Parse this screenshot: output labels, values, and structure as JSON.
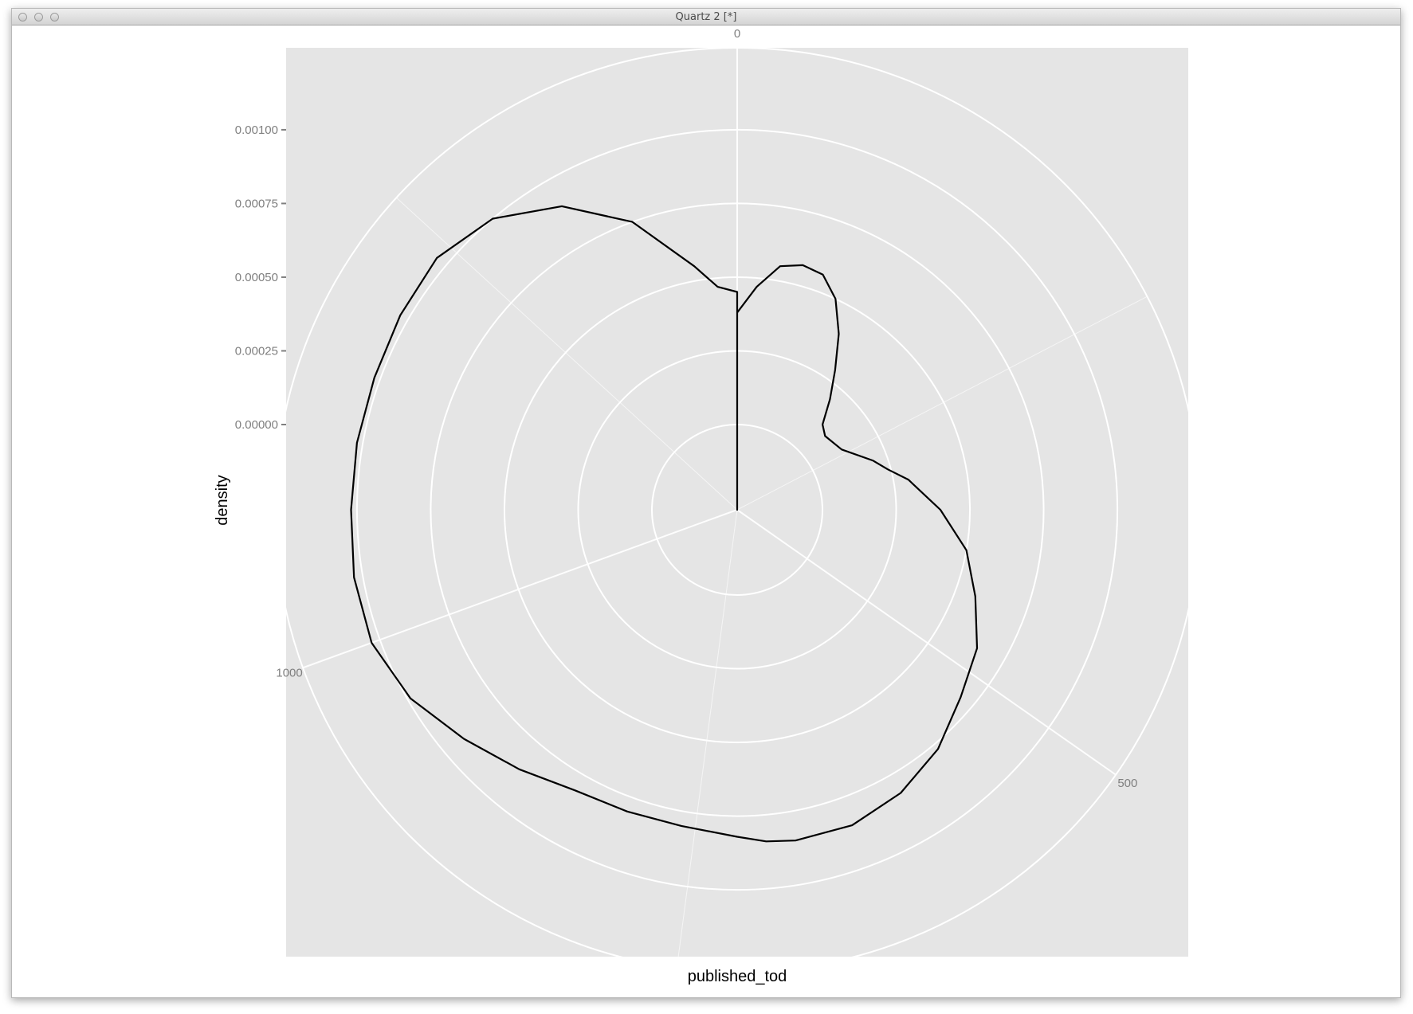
{
  "window": {
    "title": "Quartz 2 [*]"
  },
  "chart_data": {
    "type": "area",
    "coordinate_system": "polar",
    "title": "",
    "xlabel": "published_tod",
    "ylabel": "density",
    "angle_ticks": [
      "0",
      "500",
      "1000"
    ],
    "angle_tick_values": [
      0,
      500,
      1000
    ],
    "theta_range": [
      0,
      1440
    ],
    "radial_ticks": [
      "0.00000",
      "0.00025",
      "0.00050",
      "0.00075",
      "0.00100"
    ],
    "radial_tick_values": [
      0,
      0.00025,
      0.0005,
      0.00075,
      0.001
    ],
    "ylim": [
      0,
      0.00117
    ],
    "grid": true,
    "panel_color": "#e5e5e5",
    "grid_color": "#ffffff",
    "line_color": "#000000",
    "series": [
      {
        "x": [
          0,
          20,
          40,
          60,
          80,
          100,
          120,
          140,
          160,
          180,
          200,
          240,
          280,
          300,
          320,
          360,
          400,
          440,
          480,
          520,
          560,
          600,
          640,
          680,
          700,
          720,
          760,
          800,
          840,
          880,
          920,
          960,
          1000,
          1040,
          1080,
          1120,
          1160,
          1200,
          1240,
          1280,
          1320,
          1360,
          1400,
          1420,
          1440
        ],
        "y": [
          0.00038,
          0.00047,
          0.00055,
          0.00057,
          0.00056,
          0.0005,
          0.0004,
          0.00029,
          0.0002,
          0.00012,
          0.0001,
          0.00012,
          0.0002,
          0.00024,
          0.0003,
          0.0004,
          0.0005,
          0.00057,
          0.00065,
          0.0007,
          0.00077,
          0.00082,
          0.00085,
          0.00085,
          0.00084,
          0.00082,
          0.0008,
          0.0008,
          0.00081,
          0.00086,
          0.00092,
          0.00099,
          0.00103,
          0.00103,
          0.00102,
          0.00102,
          0.00102,
          0.00103,
          0.00104,
          0.001,
          0.0009,
          0.00075,
          0.00055,
          0.00047,
          0.00045
        ]
      }
    ]
  }
}
